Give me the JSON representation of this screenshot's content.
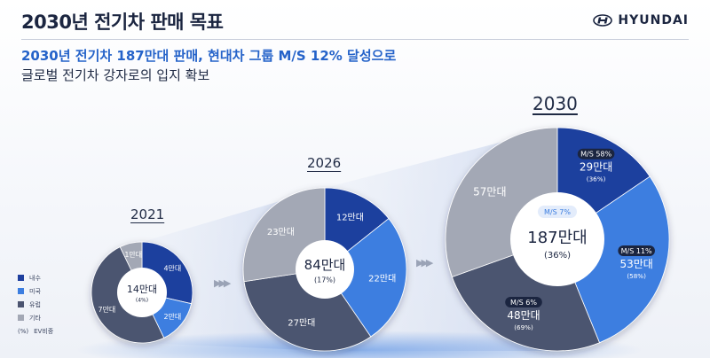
{
  "header": {
    "title": "2030년 전기차 판매 목표",
    "brand": "HYUNDAI"
  },
  "subtitle": {
    "line1": "2030년 전기차 187만대 판매, 현대차 그룹 M/S 12% 달성으로",
    "line2": "글로벌 전기차 강자로의 입지 확보"
  },
  "legend": {
    "items": [
      {
        "label": "내수",
        "color": "#1e3f9e"
      },
      {
        "label": "미국",
        "color": "#3c7ee0"
      },
      {
        "label": "유럽",
        "color": "#4b5470"
      },
      {
        "label": "기타",
        "color": "#a3a8b5"
      },
      {
        "label": "EV비중",
        "marker": "(%)"
      }
    ]
  },
  "colors": {
    "domestic": "#1e3f9e",
    "us": "#3c7ee0",
    "europe": "#4b5470",
    "other": "#a3a8b5"
  },
  "chart_data": [
    {
      "type": "pie",
      "year": "2021",
      "total_label": "14만대",
      "share_label": "(4%)",
      "categories": [
        "내수",
        "미국",
        "유럽",
        "기타"
      ],
      "values": [
        4,
        2,
        7,
        1
      ],
      "slice_labels": [
        "4만대",
        "2만대",
        "7만대",
        "1만대"
      ]
    },
    {
      "type": "pie",
      "year": "2026",
      "total_label": "84만대",
      "share_label": "(17%)",
      "categories": [
        "내수",
        "미국",
        "유럽",
        "기타"
      ],
      "values": [
        12,
        22,
        27,
        23
      ],
      "slice_labels": [
        "12만대",
        "22만대",
        "27만대",
        "23만대"
      ]
    },
    {
      "type": "pie",
      "year": "2030",
      "total_label": "187만대",
      "share_label": "(36%)",
      "ms_badge": "M/S 7%",
      "categories": [
        "내수",
        "미국",
        "유럽",
        "기타"
      ],
      "values": [
        29,
        53,
        48,
        57
      ],
      "slice_labels": [
        "29만대",
        "53만대",
        "48만대",
        "57만대"
      ],
      "slice_shares": [
        "(36%)",
        "(58%)",
        "(69%)",
        ""
      ],
      "slice_ms": [
        "M/S 58%",
        "M/S 11%",
        "M/S 6%",
        ""
      ]
    }
  ]
}
